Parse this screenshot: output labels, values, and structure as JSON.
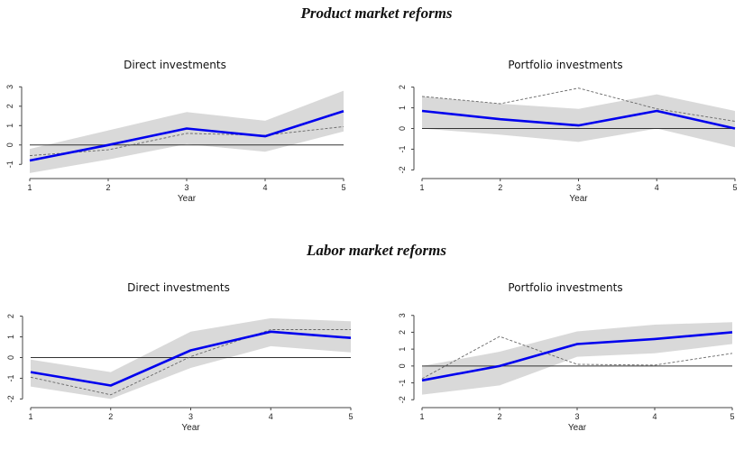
{
  "sections": {
    "product_title": "Product market reforms",
    "labor_title": "Labor market reforms"
  },
  "colors": {
    "line": "#0000ee",
    "band": "#d9d9d9",
    "dashed": "#666666",
    "zero": "#333333"
  },
  "chart_data": [
    {
      "type": "line",
      "title": "Direct investments",
      "xlabel": "Year",
      "x": [
        1,
        2,
        3,
        4,
        5
      ],
      "ylim": [
        -1.5,
        3.2
      ],
      "yticks": [
        -1,
        0,
        1,
        2,
        3
      ],
      "estimate": [
        -0.8,
        0.0,
        0.85,
        0.45,
        1.75
      ],
      "ci_lower": [
        -1.45,
        -0.75,
        0.05,
        -0.35,
        0.7
      ],
      "ci_upper": [
        -0.2,
        0.75,
        1.7,
        1.25,
        2.8
      ],
      "dashed": [
        -0.55,
        -0.25,
        0.6,
        0.5,
        0.95
      ]
    },
    {
      "type": "line",
      "title": "Portfolio investments",
      "xlabel": "Year",
      "x": [
        1,
        2,
        3,
        4,
        5
      ],
      "ylim": [
        -2.2,
        2.2
      ],
      "yticks": [
        -2,
        -1,
        0,
        1,
        2
      ],
      "estimate": [
        0.85,
        0.45,
        0.15,
        0.85,
        0.0
      ],
      "ci_lower": [
        0.0,
        -0.3,
        -0.65,
        0.0,
        -0.9
      ],
      "ci_upper": [
        1.55,
        1.2,
        0.95,
        1.65,
        0.85
      ],
      "dashed": [
        1.55,
        1.2,
        1.95,
        0.95,
        0.35
      ]
    },
    {
      "type": "line",
      "title": "Direct investments",
      "xlabel": "Year",
      "x": [
        1,
        2,
        3,
        4,
        5
      ],
      "ylim": [
        -2.2,
        2.2
      ],
      "yticks": [
        -2,
        -1,
        0,
        1,
        2
      ],
      "estimate": [
        -0.7,
        -1.35,
        0.35,
        1.25,
        0.95
      ],
      "ci_lower": [
        -1.4,
        -2.0,
        -0.5,
        0.55,
        0.25
      ],
      "ci_upper": [
        -0.1,
        -0.7,
        1.25,
        1.9,
        1.75
      ],
      "dashed": [
        -0.95,
        -1.8,
        0.05,
        1.35,
        1.35
      ]
    },
    {
      "type": "line",
      "title": "Portfolio investments",
      "xlabel": "Year",
      "x": [
        1,
        2,
        3,
        4,
        5
      ],
      "ylim": [
        -2.2,
        3.2
      ],
      "yticks": [
        -2,
        -1,
        0,
        1,
        2,
        3
      ],
      "estimate": [
        -0.85,
        0.0,
        1.3,
        1.6,
        2.0
      ],
      "ci_lower": [
        -1.7,
        -1.15,
        0.55,
        0.75,
        1.3
      ],
      "ci_upper": [
        0.0,
        0.85,
        2.05,
        2.45,
        2.6
      ],
      "dashed": [
        -0.75,
        1.75,
        0.1,
        0.05,
        0.75
      ]
    }
  ]
}
